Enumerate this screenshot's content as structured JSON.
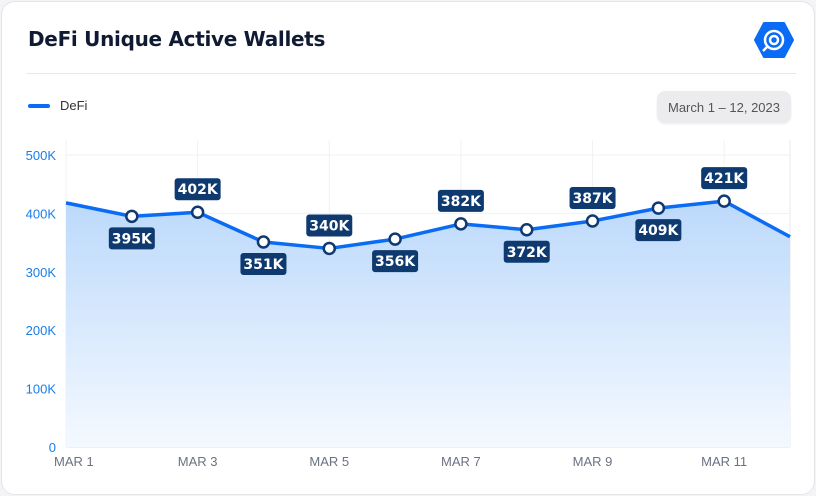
{
  "header": {
    "title": "DeFi Unique Active Wallets",
    "logo": "dappradar-logo-icon"
  },
  "date_range": "March 1 – 12, 2023",
  "watermark": "DappRadar",
  "colors": {
    "line": "#0a6cf5",
    "label_bg": "#0f3a70",
    "axis_text": "#1a7ee6"
  },
  "chart_data": {
    "type": "area",
    "title": "DeFi Unique Active Wallets",
    "legend": [
      {
        "name": "DeFi",
        "position": "top-left"
      }
    ],
    "x": [
      "MAR 1",
      "MAR 2",
      "MAR 3",
      "MAR 4",
      "MAR 5",
      "MAR 6",
      "MAR 7",
      "MAR 8",
      "MAR 9",
      "MAR 10",
      "MAR 11",
      "MAR 12"
    ],
    "x_tick_labels": [
      "MAR 1",
      "MAR 3",
      "MAR 5",
      "MAR 7",
      "MAR 9",
      "MAR 11"
    ],
    "series": [
      {
        "name": "DeFi",
        "values": [
          418000,
          395000,
          402000,
          351000,
          340000,
          356000,
          382000,
          372000,
          387000,
          409000,
          421000,
          360000
        ]
      }
    ],
    "data_labels": [
      null,
      "395K",
      "402K",
      "351K",
      "340K",
      "356K",
      "382K",
      "372K",
      "387K",
      "409K",
      "421K",
      null
    ],
    "label_position": [
      null,
      "below",
      "above",
      "below",
      "above",
      "below",
      "above",
      "below",
      "above",
      "below",
      "above",
      null
    ],
    "y_tick_labels": [
      "0",
      "100K",
      "200K",
      "300K",
      "400K",
      "500K"
    ],
    "ylim": [
      0,
      500000
    ],
    "grid": true
  }
}
